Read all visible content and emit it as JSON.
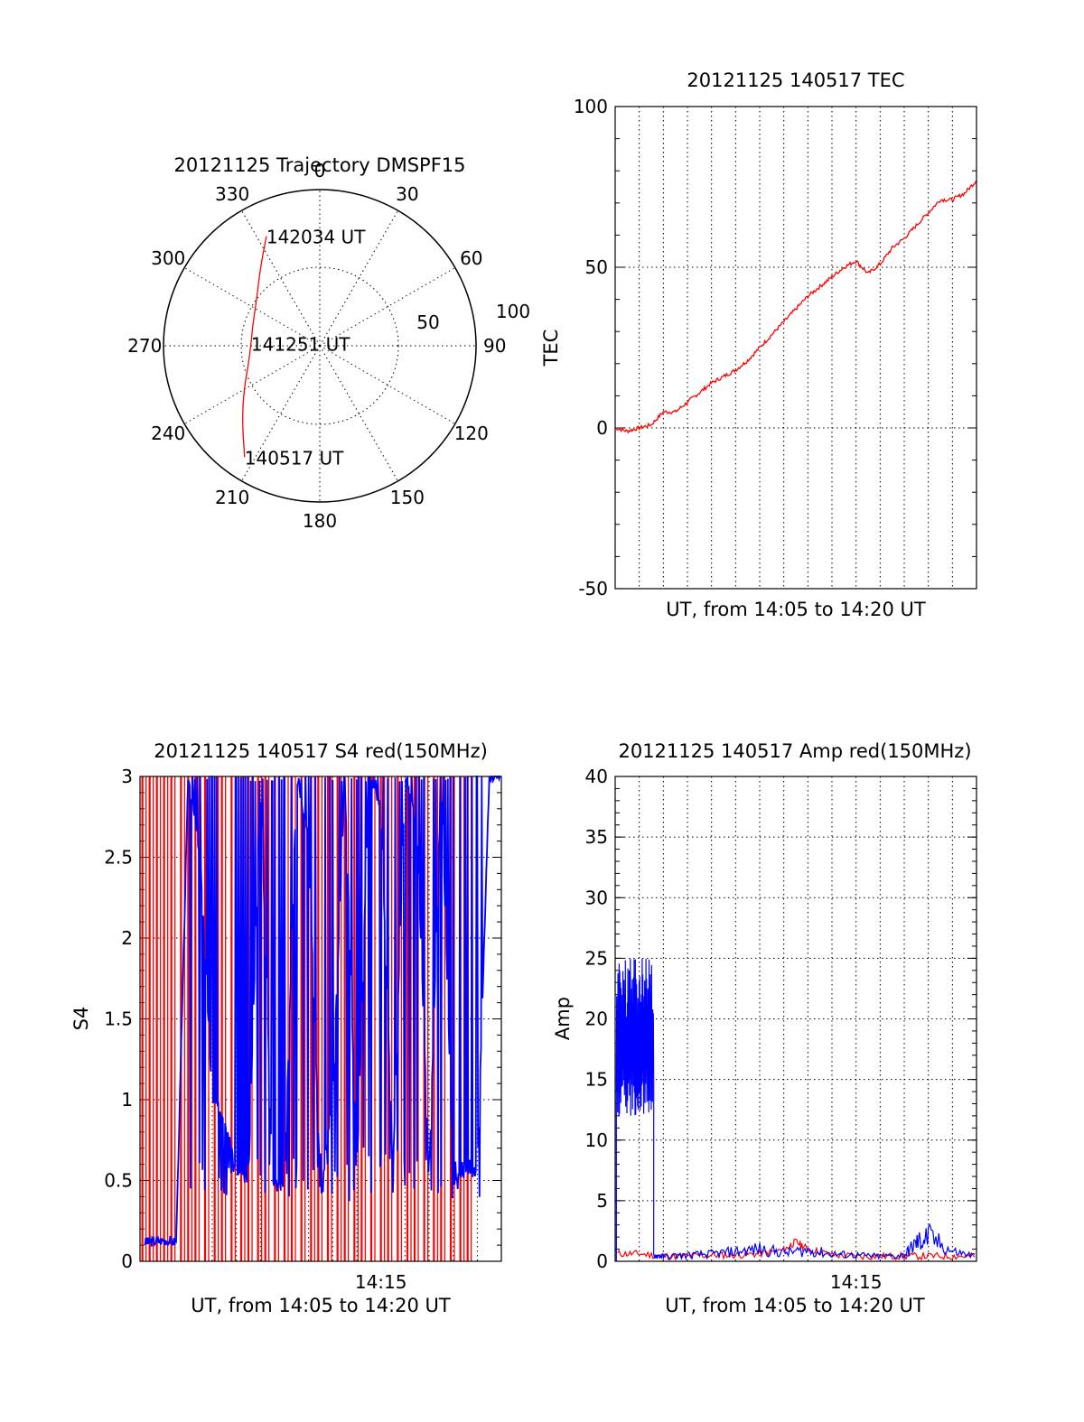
{
  "chart_data": [
    {
      "type": "polar",
      "title": "20121125 Trajectory DMSPF15",
      "angle_labels": [
        "0",
        "30",
        "60",
        "90",
        "120",
        "150",
        "180",
        "210",
        "240",
        "270",
        "300",
        "330"
      ],
      "radial_labels": [
        "50",
        "100"
      ],
      "trajectory_color": "#ff0000",
      "trajectory": [
        {
          "az": 334,
          "r": 78
        },
        {
          "az": 322,
          "r": 62
        },
        {
          "az": 306,
          "r": 50
        },
        {
          "az": 288,
          "r": 45
        },
        {
          "az": 272,
          "r": 44
        },
        {
          "az": 256,
          "r": 47
        },
        {
          "az": 240,
          "r": 56
        },
        {
          "az": 226,
          "r": 69
        },
        {
          "az": 214,
          "r": 86
        }
      ],
      "annotations": [
        {
          "text": "142034 UT",
          "az": 334,
          "r": 78
        },
        {
          "text": "141251 UT",
          "az": 272,
          "r": 44
        },
        {
          "text": "140517 UT",
          "az": 214,
          "r": 86
        }
      ]
    },
    {
      "type": "line",
      "title": "20121125 140517 TEC",
      "xlabel": "UT, from 14:05 to 14:20 UT",
      "ylabel": "TEC",
      "xlim": [
        0,
        15
      ],
      "ylim": [
        -50,
        100
      ],
      "yticks": [
        "-50",
        "0",
        "50",
        "100"
      ],
      "xticks": [],
      "grid": true,
      "series": [
        {
          "color": "#ff0000",
          "x": [
            0,
            0.5,
            1,
            1.5,
            2,
            2.5,
            3,
            3.5,
            4,
            4.5,
            5,
            5.5,
            6,
            6.5,
            7,
            7.5,
            8,
            8.5,
            9,
            9.5,
            10,
            10.5,
            11,
            11.5,
            12,
            12.5,
            13,
            13.5,
            14,
            14.5,
            15
          ],
          "y": [
            0,
            -1,
            0,
            1,
            5,
            5,
            8,
            11,
            14,
            16,
            18,
            21,
            25,
            29,
            33,
            37,
            41,
            44,
            47,
            50,
            52,
            48,
            51,
            56,
            59,
            63,
            67,
            71,
            71,
            73,
            77
          ]
        }
      ]
    },
    {
      "type": "line",
      "title": "20121125 140517 S4 red(150MHz)",
      "xlabel": "UT, from 14:05 to 14:20 UT",
      "ylabel": "S4",
      "xlim": [
        0,
        15
      ],
      "ylim": [
        0,
        3
      ],
      "yticks": [
        "0",
        "0.5",
        "1",
        "1.5",
        "2",
        "2.5",
        "3"
      ],
      "xticks": [
        {
          "value": 10,
          "label": "14:15"
        }
      ],
      "grid": true,
      "series": [
        {
          "color": "#ff0000",
          "x": [
            0.1,
            0.4,
            0.7,
            1.0,
            1.3,
            1.7,
            2.0,
            2.3,
            2.7,
            3.1,
            3.4,
            3.8,
            4.2,
            4.5,
            4.9,
            5.2,
            5.6,
            6.0,
            6.3,
            6.7,
            7.1,
            7.4,
            7.8,
            8.2,
            8.5,
            8.9,
            9.2,
            9.6,
            10.0,
            10.3,
            10.7,
            11.1,
            11.4,
            11.8,
            12.2,
            12.5,
            12.9,
            13.3,
            13.6
          ],
          "y": [
            3,
            0,
            3,
            0,
            3,
            0,
            3,
            0,
            3,
            0,
            3,
            0,
            3,
            0,
            3,
            0,
            3,
            0,
            3,
            0,
            3,
            0,
            3,
            0,
            3,
            0,
            3,
            0,
            3,
            0,
            3,
            0,
            3,
            0,
            3,
            0,
            3,
            0,
            3
          ]
        },
        {
          "color": "#0000ff",
          "x": [
            0.2,
            0.5,
            1.0,
            1.5,
            2.0,
            2.5,
            3.0,
            3.5,
            4.0,
            4.5,
            5.0,
            5.5,
            6.0,
            6.5,
            7.0,
            7.5,
            8.0,
            8.5,
            9.0,
            9.5,
            10.0,
            10.5,
            11.0,
            11.5,
            12.0,
            12.5,
            13.0,
            13.5,
            14.0,
            14.5,
            15.0
          ],
          "y": [
            0.12,
            0.12,
            0.13,
            0.12,
            3.0,
            2.5,
            1.0,
            0.9,
            0.55,
            0.5,
            3.0,
            0.5,
            0.45,
            3.0,
            2.6,
            0.4,
            1.0,
            3.0,
            0.5,
            3.0,
            2.8,
            0.55,
            3.0,
            2.7,
            0.5,
            3.0,
            0.5,
            0.55,
            0.55,
            3.0,
            3.0
          ]
        }
      ]
    },
    {
      "type": "line",
      "title": "20121125 140517 Amp red(150MHz)",
      "xlabel": "UT, from 14:05 to 14:20 UT",
      "ylabel": "Amp",
      "xlim": [
        0,
        15
      ],
      "ylim": [
        0,
        40
      ],
      "yticks": [
        "0",
        "5",
        "10",
        "15",
        "20",
        "25",
        "30",
        "35",
        "40"
      ],
      "xticks": [
        {
          "value": 10,
          "label": "14:15"
        }
      ],
      "grid": true,
      "series": [
        {
          "color": "#0000ff",
          "burst": {
            "x_start": 0.05,
            "x_end": 1.6,
            "low": 12,
            "high": 25
          },
          "x": [
            1.6,
            2.0,
            3.0,
            4.0,
            5.0,
            6.0,
            7.0,
            8.0,
            9.0,
            10.0,
            11.0,
            12.0,
            12.5,
            13.0,
            14.0,
            15.0
          ],
          "y": [
            0.5,
            0.4,
            0.5,
            0.6,
            0.8,
            1.0,
            0.7,
            0.9,
            0.6,
            0.5,
            0.4,
            0.5,
            1.5,
            2.0,
            0.8,
            0.4
          ]
        },
        {
          "color": "#ff0000",
          "x": [
            0.1,
            1.0,
            2.0,
            3.0,
            4.0,
            5.0,
            6.0,
            7.0,
            7.5,
            8.0,
            9.0,
            10.0,
            11.0,
            12.0,
            13.0,
            14.0,
            15.0
          ],
          "y": [
            0.5,
            0.5,
            0.3,
            0.3,
            0.4,
            0.4,
            0.5,
            0.8,
            1.5,
            0.9,
            0.4,
            0.3,
            0.3,
            0.3,
            0.3,
            0.3,
            0.3
          ]
        }
      ]
    }
  ]
}
